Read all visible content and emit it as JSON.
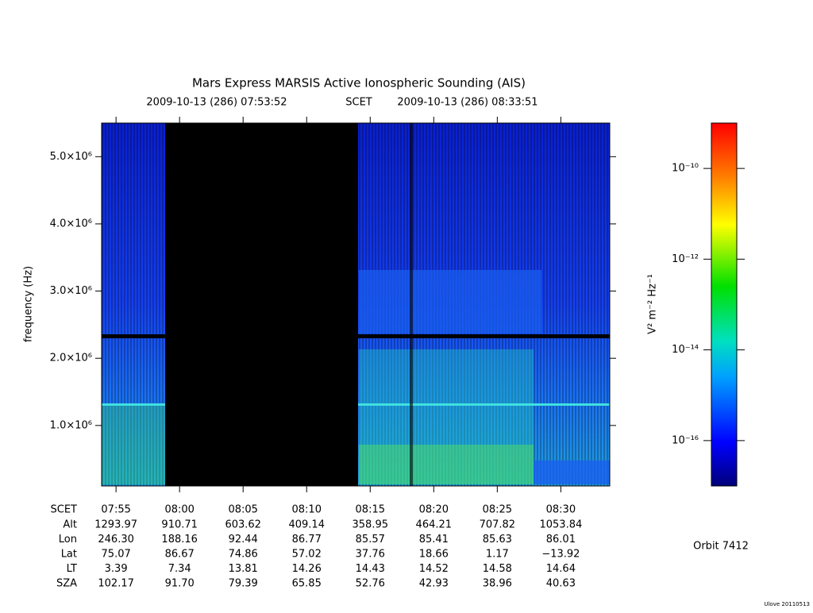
{
  "chart_data": {
    "type": "spectrogram",
    "title": "Mars Express MARSIS Active Ionospheric Sounding (AIS)",
    "start_time": "2009-10-13 (286) 07:53:52",
    "time_system": "SCET",
    "end_time": "2009-10-13 (286) 08:33:51",
    "y_label": "frequency (Hz)",
    "ylim": [
      100000,
      5500000
    ],
    "yticks": [
      {
        "value": 1000000,
        "label": "1.0×10⁶"
      },
      {
        "value": 2000000,
        "label": "2.0×10⁶"
      },
      {
        "value": 3000000,
        "label": "3.0×10⁶"
      },
      {
        "value": 4000000,
        "label": "4.0×10⁶"
      },
      {
        "value": 5000000,
        "label": "5.0×10⁶"
      }
    ],
    "xlim": [
      "07:53:52",
      "08:33:51"
    ],
    "xticks": [
      "07:55",
      "08:00",
      "08:05",
      "08:10",
      "08:15",
      "08:20",
      "08:25",
      "08:30"
    ],
    "ephemeris": {
      "time_label": "SCET",
      "rows": [
        {
          "label": "Alt",
          "values": [
            "1293.97",
            "910.71",
            "603.62",
            "409.14",
            "358.95",
            "464.21",
            "707.82",
            "1053.84"
          ]
        },
        {
          "label": "Lon",
          "values": [
            "246.30",
            "188.16",
            "92.44",
            "86.77",
            "85.57",
            "85.41",
            "85.63",
            "86.01"
          ]
        },
        {
          "label": "Lat",
          "values": [
            "75.07",
            "86.67",
            "74.86",
            "57.02",
            "37.76",
            "18.66",
            "1.17",
            "−13.92"
          ]
        },
        {
          "label": "LT",
          "values": [
            "3.39",
            "7.34",
            "13.81",
            "14.26",
            "14.43",
            "14.52",
            "14.58",
            "14.64"
          ]
        },
        {
          "label": "SZA",
          "values": [
            "102.17",
            "91.70",
            "79.39",
            "65.85",
            "52.76",
            "42.93",
            "38.96",
            "40.63"
          ]
        }
      ]
    },
    "colorbar": {
      "label": "V² m⁻² Hz⁻¹",
      "zlim": [
        -17,
        -9
      ],
      "zticks": [
        {
          "value": -10,
          "label": "10⁻¹⁰"
        },
        {
          "value": -12,
          "label": "10⁻¹²"
        },
        {
          "value": -14,
          "label": "10⁻¹⁴"
        },
        {
          "value": -16,
          "label": "10⁻¹⁶"
        }
      ]
    },
    "orbit": "Orbit 7412",
    "credit": "Ulove 20110513"
  }
}
